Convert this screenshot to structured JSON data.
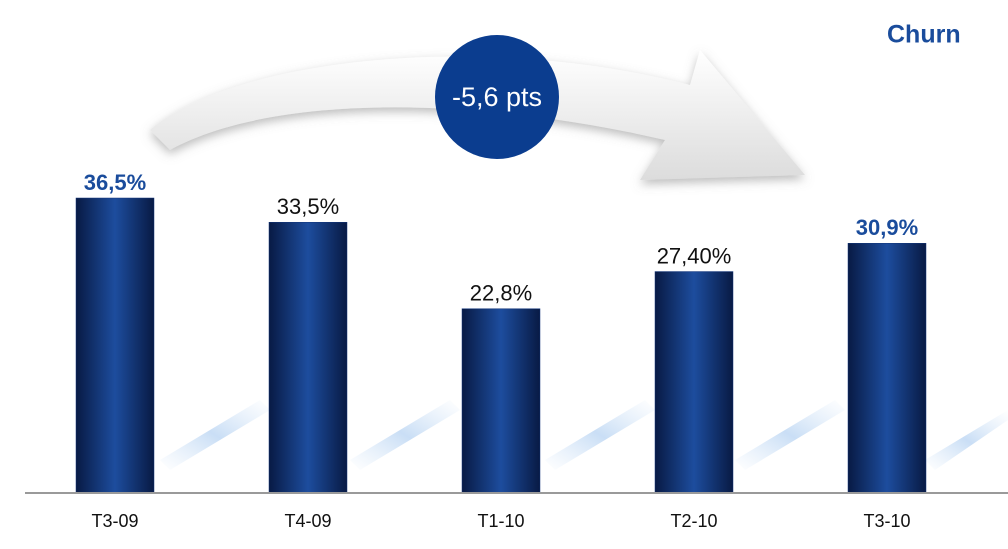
{
  "chart_data": {
    "type": "bar",
    "title": "Churn",
    "annotation": "-5,6 pts",
    "categories": [
      "T3-09",
      "T4-09",
      "T1-10",
      "T2-10",
      "T3-10"
    ],
    "values": [
      36.5,
      33.5,
      22.8,
      27.4,
      30.9
    ],
    "value_labels": [
      "36,5%",
      "33,5%",
      "22,8%",
      "27,40%",
      "30,9%"
    ],
    "highlighted_labels": [
      0,
      4
    ],
    "color": "#12357a",
    "highlight_color": "#1a4c9c"
  }
}
